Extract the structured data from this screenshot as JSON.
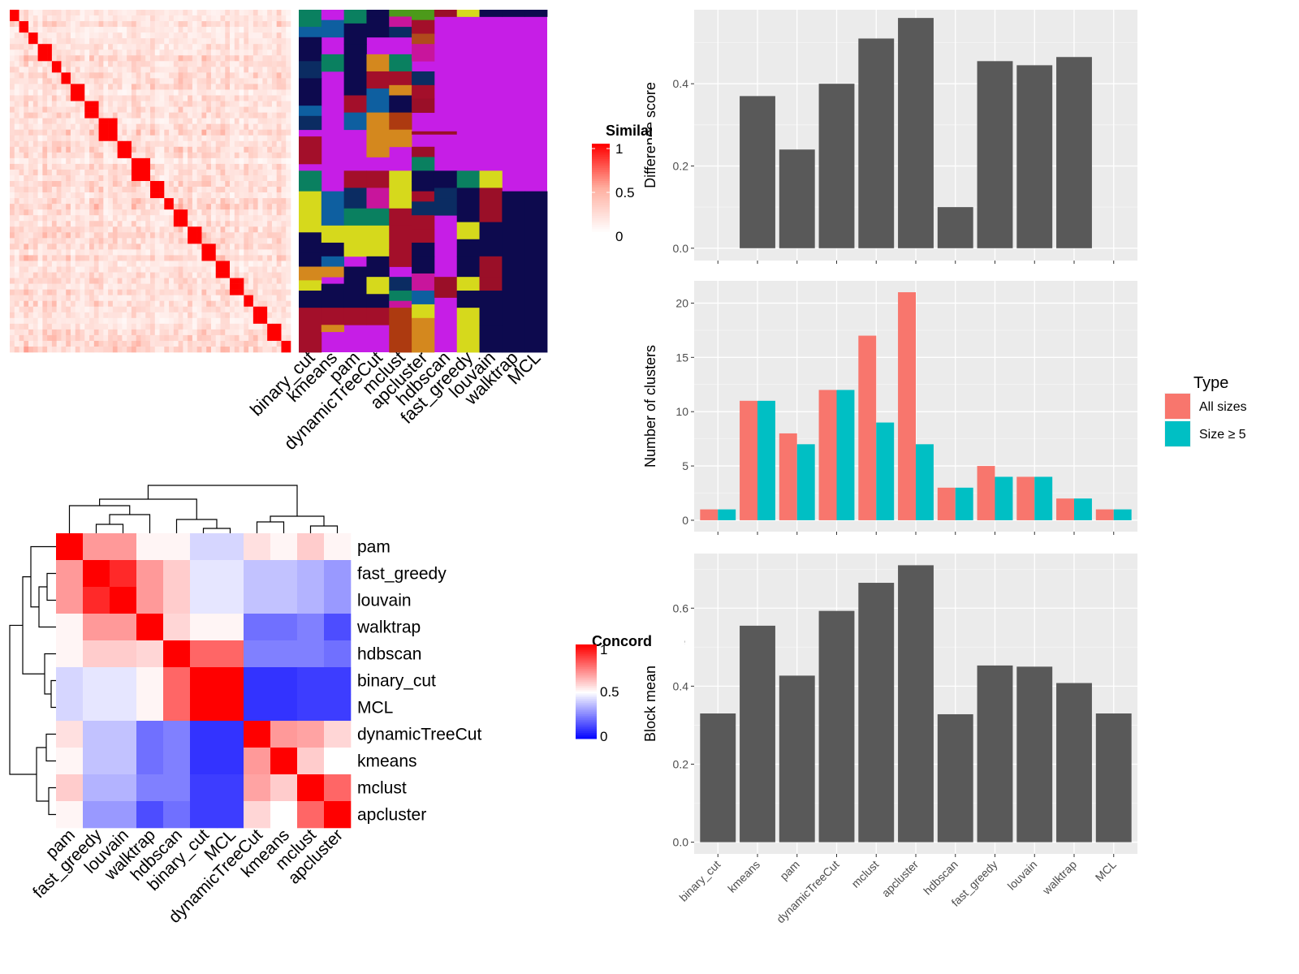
{
  "chart_data": [
    {
      "type": "heatmap",
      "panel": "similarity_heatmap",
      "legend_title": "Similarity",
      "legend_ticks": [
        "1",
        "0.5",
        "0"
      ],
      "colors": {
        "high": "#ff0000",
        "mid": "#ffb3a7",
        "low": "#ffffff"
      },
      "note": "sample x sample similarity matrix, red diagonal blocks"
    },
    {
      "type": "heatmap",
      "panel": "cluster_assignment_heatmap",
      "columns": [
        "binary_cut",
        "kmeans",
        "pam",
        "dynamicTreeCut",
        "mclust",
        "apcluster",
        "hdbscan",
        "fast_greedy",
        "louvain",
        "walktrap",
        "MCL"
      ],
      "palette": [
        "#c61ee6",
        "#0a8060",
        "#0d0a4e",
        "#0e5fa0",
        "#a30f2a",
        "#d6d91c",
        "#d4881e",
        "#4c9a1a",
        "#0b2c62",
        "#c8159c",
        "#ad3a10",
        "#0e2f6e",
        "#b04a1c",
        "#9a0f28"
      ]
    },
    {
      "type": "heatmap",
      "panel": "concordance_heatmap",
      "legend_title": "Concordance",
      "legend_ticks": [
        "1",
        "0.5",
        "0"
      ],
      "row_labels": [
        "pam",
        "fast_greedy",
        "louvain",
        "walktrap",
        "hdbscan",
        "binary_cut",
        "MCL",
        "dynamicTreeCut",
        "kmeans",
        "mclust",
        "apcluster"
      ],
      "col_labels": [
        "pam",
        "fast_greedy",
        "louvain",
        "walktrap",
        "hdbscan",
        "binary_cut",
        "MCL",
        "dynamicTreeCut",
        "kmeans",
        "mclust",
        "apcluster"
      ],
      "values": [
        [
          1.0,
          0.7,
          0.7,
          0.52,
          0.52,
          0.42,
          0.42,
          0.56,
          0.52,
          0.6,
          0.52
        ],
        [
          0.7,
          1.0,
          0.92,
          0.7,
          0.6,
          0.45,
          0.45,
          0.38,
          0.38,
          0.35,
          0.3
        ],
        [
          0.7,
          0.92,
          1.0,
          0.7,
          0.6,
          0.45,
          0.45,
          0.38,
          0.38,
          0.35,
          0.3
        ],
        [
          0.52,
          0.7,
          0.7,
          1.0,
          0.58,
          0.52,
          0.52,
          0.22,
          0.22,
          0.25,
          0.15
        ],
        [
          0.52,
          0.6,
          0.6,
          0.58,
          1.0,
          0.8,
          0.8,
          0.25,
          0.25,
          0.25,
          0.22
        ],
        [
          0.42,
          0.45,
          0.45,
          0.52,
          0.8,
          1.0,
          1.0,
          0.1,
          0.1,
          0.12,
          0.12
        ],
        [
          0.42,
          0.45,
          0.45,
          0.52,
          0.8,
          1.0,
          1.0,
          0.1,
          0.1,
          0.12,
          0.12
        ],
        [
          0.56,
          0.38,
          0.38,
          0.22,
          0.25,
          0.1,
          0.1,
          1.0,
          0.7,
          0.68,
          0.58
        ],
        [
          0.52,
          0.38,
          0.38,
          0.22,
          0.25,
          0.1,
          0.1,
          0.7,
          1.0,
          0.6,
          0.5
        ],
        [
          0.6,
          0.35,
          0.35,
          0.25,
          0.25,
          0.12,
          0.12,
          0.68,
          0.6,
          1.0,
          0.8
        ],
        [
          0.52,
          0.3,
          0.3,
          0.15,
          0.22,
          0.12,
          0.12,
          0.58,
          0.5,
          0.8,
          1.0
        ]
      ],
      "colors": {
        "high": "#ff0000",
        "mid": "#ffffff",
        "low": "#0000ff"
      }
    },
    {
      "type": "bar",
      "panel": "difference_score",
      "categories": [
        "binary_cut",
        "kmeans",
        "pam",
        "dynamicTreeCut",
        "mclust",
        "apcluster",
        "hdbscan",
        "fast_greedy",
        "louvain",
        "walktrap",
        "MCL"
      ],
      "values": [
        0,
        0.37,
        0.24,
        0.4,
        0.51,
        0.56,
        0.1,
        0.455,
        0.445,
        0.465,
        0
      ],
      "ylabel": "Difference score",
      "ylim": [
        -0.03,
        0.58
      ],
      "yticks": [
        0.0,
        0.2,
        0.4
      ],
      "ytick_labels": [
        "0.0",
        "0.2",
        "0.4"
      ],
      "bar_color": "#595959"
    },
    {
      "type": "bar",
      "panel": "number_of_clusters",
      "categories": [
        "binary_cut",
        "kmeans",
        "pam",
        "dynamicTreeCut",
        "mclust",
        "apcluster",
        "hdbscan",
        "fast_greedy",
        "louvain",
        "walktrap",
        "MCL"
      ],
      "series": [
        {
          "name": "All sizes",
          "values": [
            1,
            11,
            8,
            12,
            17,
            21,
            3,
            5,
            4,
            2,
            1
          ],
          "color": "#f8766d"
        },
        {
          "name": "Size ≥ 5",
          "values": [
            1,
            11,
            7,
            12,
            9,
            7,
            3,
            4,
            4,
            2,
            1
          ],
          "color": "#00bfc4"
        }
      ],
      "ylabel": "Number of clusters",
      "ylim": [
        -1.05,
        22.05
      ],
      "yticks": [
        0,
        5,
        10,
        15,
        20
      ],
      "legend_title": "Type",
      "legend_position": "right"
    },
    {
      "type": "bar",
      "panel": "block_mean",
      "categories": [
        "binary_cut",
        "kmeans",
        "pam",
        "dynamicTreeCut",
        "mclust",
        "apcluster",
        "hdbscan",
        "fast_greedy",
        "louvain",
        "walktrap",
        "MCL"
      ],
      "values": [
        0.33,
        0.555,
        0.427,
        0.593,
        0.665,
        0.71,
        0.328,
        0.453,
        0.45,
        0.408,
        0.33
      ],
      "ylabel": "Block mean",
      "ylim": [
        -0.03,
        0.74
      ],
      "yticks": [
        0.0,
        0.2,
        0.4,
        0.6
      ],
      "ytick_labels": [
        "0.0",
        "0.2",
        "0.4",
        "0.6"
      ],
      "bar_color": "#595959"
    }
  ]
}
